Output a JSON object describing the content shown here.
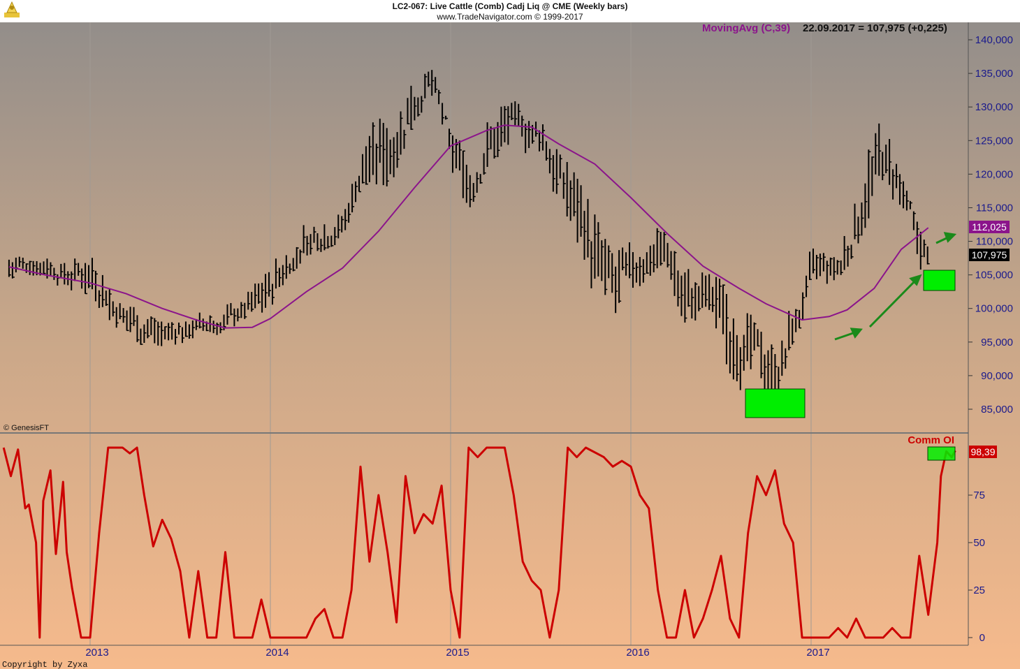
{
  "header": {
    "title": "LC2-067:  Live Cattle (Comb) Cadj Liq @ CME  (Weekly bars)",
    "copyright": "www.TradeNavigator.com © 1999-2017"
  },
  "indicator_label": {
    "name": "MovingAvg (C,39)",
    "value_text": "22.09.2017 = 107,975 (+0,225)"
  },
  "price_badges": {
    "ma": "112,025",
    "close": "107,975"
  },
  "comm_label": "Comm OI",
  "comm_badge": "98,39",
  "watermark": "© GenesisFT",
  "footer_copyright": "Copyright by Zyxa",
  "colors": {
    "price_bar": "#000000",
    "moving_avg": "#8b148b",
    "comm_oi": "#cc0000",
    "highlight_box": "#00ee00",
    "arrow": "#1a8a1a",
    "axis_text": "#1a1a8c"
  },
  "chart_data": [
    {
      "type": "line",
      "panel": "price",
      "yticks": [
        "140,000",
        "135,000",
        "130,000",
        "125,000",
        "120,000",
        "115,000",
        "110,000",
        "105,000",
        "100,000",
        "95,000",
        "90,000",
        "85,000"
      ],
      "ylim": [
        82000,
        142000
      ],
      "xticks": [
        "2013",
        "2014",
        "2015",
        "2016",
        "2017"
      ],
      "series": [
        {
          "name": "MovingAvg (C,39)",
          "points": [
            [
              2012.55,
              106200
            ],
            [
              2012.75,
              105000
            ],
            [
              2013.0,
              103800
            ],
            [
              2013.2,
              102200
            ],
            [
              2013.4,
              100000
            ],
            [
              2013.6,
              98200
            ],
            [
              2013.75,
              97100
            ],
            [
              2013.9,
              97200
            ],
            [
              2014.0,
              98500
            ],
            [
              2014.2,
              102500
            ],
            [
              2014.4,
              106000
            ],
            [
              2014.6,
              111500
            ],
            [
              2014.8,
              118000
            ],
            [
              2015.0,
              124200
            ],
            [
              2015.2,
              126500
            ],
            [
              2015.3,
              127300
            ],
            [
              2015.45,
              127000
            ],
            [
              2015.6,
              124500
            ],
            [
              2015.8,
              121500
            ],
            [
              2016.0,
              116500
            ],
            [
              2016.2,
              111200
            ],
            [
              2016.4,
              106300
            ],
            [
              2016.6,
              103000
            ],
            [
              2016.75,
              100700
            ],
            [
              2016.95,
              98300
            ],
            [
              2017.1,
              98800
            ],
            [
              2017.2,
              99800
            ],
            [
              2017.35,
              103000
            ],
            [
              2017.5,
              108800
            ],
            [
              2017.65,
              112025
            ]
          ]
        }
      ],
      "approx_weekly_bars": {
        "note_type": "high-low",
        "samples": [
          [
            2012.55,
            104000,
            108000
          ],
          [
            2012.7,
            105000,
            108500
          ],
          [
            2012.85,
            103000,
            107000
          ],
          [
            2013.0,
            102000,
            108000
          ],
          [
            2013.1,
            98000,
            104000
          ],
          [
            2013.25,
            95000,
            100000
          ],
          [
            2013.4,
            93000,
            98000
          ],
          [
            2013.55,
            95500,
            99000
          ],
          [
            2013.7,
            96000,
            100000
          ],
          [
            2013.85,
            98000,
            101500
          ],
          [
            2014.0,
            100000,
            107000
          ],
          [
            2014.1,
            105000,
            111000
          ],
          [
            2014.25,
            108000,
            113500
          ],
          [
            2014.4,
            110000,
            115000
          ],
          [
            2014.5,
            118000,
            126000
          ],
          [
            2014.65,
            117000,
            130000
          ],
          [
            2014.8,
            128000,
            138000
          ],
          [
            2014.9,
            131000,
            136000
          ],
          [
            2015.0,
            118000,
            126000
          ],
          [
            2015.1,
            114000,
            124000
          ],
          [
            2015.2,
            121000,
            129000
          ],
          [
            2015.35,
            124000,
            131000
          ],
          [
            2015.5,
            122000,
            128000
          ],
          [
            2015.65,
            112000,
            122000
          ],
          [
            2015.75,
            103000,
            117000
          ],
          [
            2015.9,
            95000,
            108000
          ],
          [
            2016.0,
            102000,
            110000
          ],
          [
            2016.15,
            106000,
            113000
          ],
          [
            2016.3,
            97000,
            106000
          ],
          [
            2016.45,
            95000,
            105000
          ],
          [
            2016.6,
            88000,
            103000
          ],
          [
            2016.7,
            86000,
            97000
          ],
          [
            2016.8,
            85000,
            95000
          ],
          [
            2016.9,
            95000,
            102000
          ],
          [
            2017.0,
            101000,
            109000
          ],
          [
            2017.15,
            103000,
            108000
          ],
          [
            2017.3,
            112000,
            126000
          ],
          [
            2017.4,
            118000,
            128000
          ],
          [
            2017.5,
            110000,
            120000
          ],
          [
            2017.6,
            104000,
            112000
          ],
          [
            2017.65,
            105000,
            109000
          ]
        ]
      }
    },
    {
      "type": "line",
      "panel": "comm_oi",
      "series_label": "Comm OI",
      "yticks": [
        "75",
        "50",
        "25",
        "0"
      ],
      "ylim": [
        0,
        100
      ],
      "points": [
        [
          2012.52,
          100
        ],
        [
          2012.56,
          85
        ],
        [
          2012.6,
          99
        ],
        [
          2012.64,
          68
        ],
        [
          2012.66,
          70
        ],
        [
          2012.7,
          50
        ],
        [
          2012.72,
          0
        ],
        [
          2012.74,
          72
        ],
        [
          2012.78,
          88
        ],
        [
          2012.81,
          44
        ],
        [
          2012.85,
          82
        ],
        [
          2012.87,
          45
        ],
        [
          2012.9,
          26
        ],
        [
          2012.95,
          0
        ],
        [
          2013.0,
          0
        ],
        [
          2013.05,
          55
        ],
        [
          2013.1,
          100
        ],
        [
          2013.18,
          100
        ],
        [
          2013.22,
          97
        ],
        [
          2013.26,
          100
        ],
        [
          2013.3,
          75
        ],
        [
          2013.35,
          48
        ],
        [
          2013.4,
          62
        ],
        [
          2013.45,
          52
        ],
        [
          2013.5,
          35
        ],
        [
          2013.55,
          0
        ],
        [
          2013.6,
          35
        ],
        [
          2013.65,
          0
        ],
        [
          2013.7,
          0
        ],
        [
          2013.75,
          45
        ],
        [
          2013.8,
          0
        ],
        [
          2013.9,
          0
        ],
        [
          2013.95,
          20
        ],
        [
          2014.0,
          0
        ],
        [
          2014.1,
          0
        ],
        [
          2014.2,
          0
        ],
        [
          2014.25,
          10
        ],
        [
          2014.3,
          15
        ],
        [
          2014.35,
          0
        ],
        [
          2014.4,
          0
        ],
        [
          2014.45,
          25
        ],
        [
          2014.5,
          90
        ],
        [
          2014.55,
          40
        ],
        [
          2014.6,
          75
        ],
        [
          2014.65,
          45
        ],
        [
          2014.7,
          8
        ],
        [
          2014.75,
          85
        ],
        [
          2014.8,
          55
        ],
        [
          2014.85,
          65
        ],
        [
          2014.9,
          60
        ],
        [
          2014.95,
          80
        ],
        [
          2015.0,
          25
        ],
        [
          2015.05,
          0
        ],
        [
          2015.1,
          100
        ],
        [
          2015.15,
          95
        ],
        [
          2015.2,
          100
        ],
        [
          2015.3,
          100
        ],
        [
          2015.35,
          75
        ],
        [
          2015.4,
          40
        ],
        [
          2015.45,
          30
        ],
        [
          2015.5,
          25
        ],
        [
          2015.55,
          0
        ],
        [
          2015.6,
          25
        ],
        [
          2015.65,
          100
        ],
        [
          2015.7,
          95
        ],
        [
          2015.75,
          100
        ],
        [
          2015.85,
          95
        ],
        [
          2015.9,
          90
        ],
        [
          2015.95,
          93
        ],
        [
          2016.0,
          90
        ],
        [
          2016.05,
          75
        ],
        [
          2016.1,
          68
        ],
        [
          2016.15,
          25
        ],
        [
          2016.2,
          0
        ],
        [
          2016.25,
          0
        ],
        [
          2016.3,
          25
        ],
        [
          2016.35,
          0
        ],
        [
          2016.4,
          10
        ],
        [
          2016.45,
          25
        ],
        [
          2016.5,
          43
        ],
        [
          2016.55,
          10
        ],
        [
          2016.6,
          0
        ],
        [
          2016.65,
          55
        ],
        [
          2016.7,
          85
        ],
        [
          2016.75,
          75
        ],
        [
          2016.8,
          88
        ],
        [
          2016.85,
          60
        ],
        [
          2016.9,
          50
        ],
        [
          2016.95,
          0
        ],
        [
          2017.0,
          0
        ],
        [
          2017.1,
          0
        ],
        [
          2017.15,
          5
        ],
        [
          2017.2,
          0
        ],
        [
          2017.25,
          10
        ],
        [
          2017.3,
          0
        ],
        [
          2017.4,
          0
        ],
        [
          2017.45,
          5
        ],
        [
          2017.5,
          0
        ],
        [
          2017.55,
          0
        ],
        [
          2017.6,
          43
        ],
        [
          2017.65,
          12
        ],
        [
          2017.7,
          50
        ],
        [
          2017.72,
          85
        ],
        [
          2017.75,
          98
        ],
        [
          2017.78,
          95
        ],
        [
          2017.8,
          98.39
        ]
      ]
    }
  ]
}
